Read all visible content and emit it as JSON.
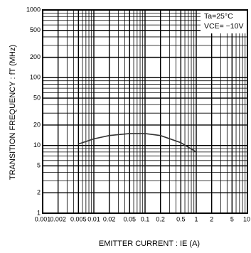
{
  "chart_data": {
    "type": "line",
    "xlabel": "EMITTER CURRENT : IE (A)",
    "ylabel": "TRANSITION FREQUENCY : fT (MHz)",
    "annotations": [
      "Ta=25°C",
      "VCE= −10V"
    ],
    "xscale": "log",
    "yscale": "log",
    "grid": true,
    "xlim": [
      0.001,
      10
    ],
    "ylim": [
      1,
      1000
    ],
    "xticks": [
      0.001,
      0.002,
      0.005,
      0.01,
      0.02,
      0.05,
      0.1,
      0.2,
      0.5,
      1,
      2,
      5,
      10
    ],
    "yticks": [
      1,
      2,
      5,
      10,
      20,
      50,
      100,
      200,
      500,
      1000
    ],
    "series": [
      {
        "color": "#333333",
        "x": [
          0.005,
          0.01,
          0.02,
          0.05,
          0.1,
          0.2,
          0.5,
          1
        ],
        "values": [
          10.5,
          12.5,
          14,
          15,
          15,
          14,
          11,
          8
        ]
      }
    ]
  }
}
